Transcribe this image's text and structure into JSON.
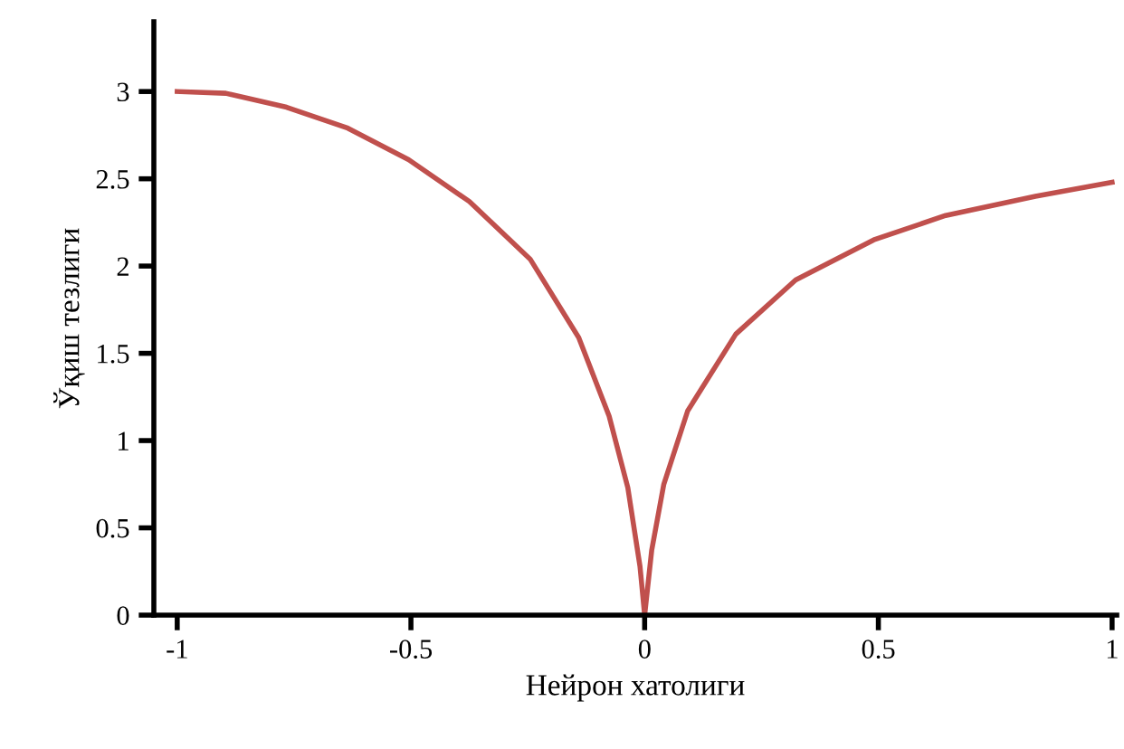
{
  "chart_data": {
    "type": "line",
    "xlabel": "Нейрон хатолиги",
    "ylabel": "Ўқиш тезлиги",
    "series": [
      {
        "color": "#c0504d",
        "x": [
          -1,
          -0.896,
          -0.766,
          -0.635,
          -0.505,
          -0.375,
          -0.245,
          -0.141,
          -0.076,
          -0.036,
          -0.01,
          0,
          0.015,
          0.041,
          0.092,
          0.195,
          0.323,
          0.49,
          0.644,
          0.836,
          1
        ],
        "values": [
          3,
          2.99,
          2.91,
          2.79,
          2.61,
          2.37,
          2.04,
          1.59,
          1.14,
          0.73,
          0.28,
          0,
          0.37,
          0.75,
          1.17,
          1.61,
          1.92,
          2.15,
          2.29,
          2.4,
          2.48
        ]
      }
    ],
    "xlim": [
      -1.05,
      1.01
    ],
    "ylim": [
      0,
      3.4
    ],
    "xticks": [
      -1,
      -0.5,
      0,
      0.5,
      1
    ],
    "yticks": [
      0,
      0.5,
      1,
      1.5,
      2,
      2.5,
      3
    ],
    "grid": false,
    "legend": false,
    "marker": "none",
    "line_style": "solid"
  }
}
